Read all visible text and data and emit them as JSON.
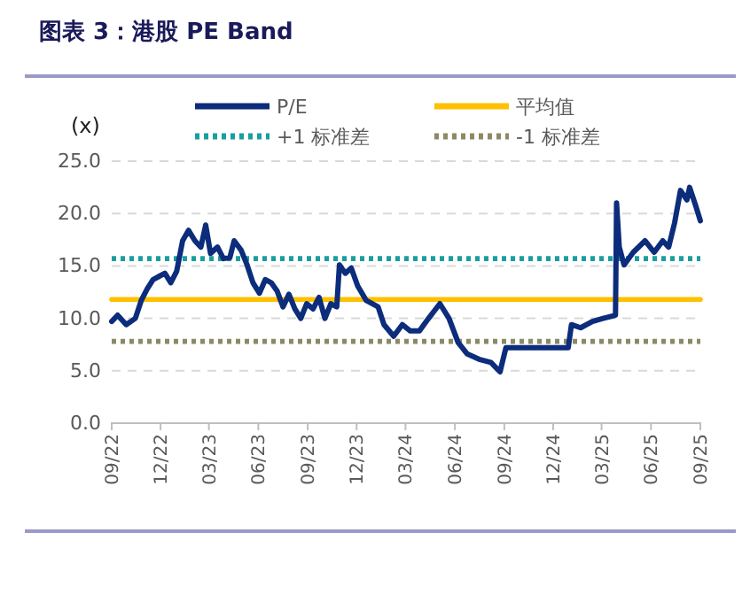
{
  "chart_data": {
    "type": "line",
    "title": "图表 3：港股 PE Band",
    "ylabel": "(x)",
    "xlim": [
      "2022-09-01",
      "2025-09-01"
    ],
    "xticks": [
      {
        "value": "2022-09-01",
        "label": "09/22"
      },
      {
        "value": "2022-12-01",
        "label": "12/22"
      },
      {
        "value": "2023-03-01",
        "label": "03/23"
      },
      {
        "value": "2023-06-01",
        "label": "06/23"
      },
      {
        "value": "2023-09-01",
        "label": "09/23"
      },
      {
        "value": "2023-12-01",
        "label": "12/23"
      },
      {
        "value": "2024-03-01",
        "label": "03/24"
      },
      {
        "value": "2024-06-01",
        "label": "06/24"
      },
      {
        "value": "2024-09-01",
        "label": "09/24"
      },
      {
        "value": "2024-12-01",
        "label": "12/24"
      },
      {
        "value": "2025-03-01",
        "label": "03/25"
      },
      {
        "value": "2025-06-01",
        "label": "06/25"
      },
      {
        "value": "2025-09-01",
        "label": "09/25"
      }
    ],
    "ylim": [
      0,
      25
    ],
    "yticks": [
      {
        "value": 0,
        "label": "0.0"
      },
      {
        "value": 5,
        "label": "5.0"
      },
      {
        "value": 10,
        "label": "10.0"
      },
      {
        "value": 15,
        "label": "15.0"
      },
      {
        "value": 20,
        "label": "20.0"
      },
      {
        "value": 25,
        "label": "25.0"
      }
    ],
    "grid": "y",
    "legend": "top",
    "marker": "none",
    "series": [
      {
        "name": "P/E",
        "color": "#0c2c7c",
        "line_style": "solid",
        "x": [
          "2022-09-01",
          "2022-09-12",
          "2022-09-28",
          "2022-10-15",
          "2022-10-26",
          "2022-11-06",
          "2022-11-17",
          "2022-11-28",
          "2022-12-09",
          "2022-12-20",
          "2022-12-31",
          "2023-01-11",
          "2023-01-22",
          "2023-02-03",
          "2023-02-14",
          "2023-02-23",
          "2023-03-04",
          "2023-03-17",
          "2023-03-28",
          "2023-04-09",
          "2023-04-17",
          "2023-04-30",
          "2023-05-11",
          "2023-05-22",
          "2023-06-03",
          "2023-06-14",
          "2023-06-25",
          "2023-07-06",
          "2023-07-17",
          "2023-07-28",
          "2023-08-08",
          "2023-08-19",
          "2023-08-30",
          "2023-09-11",
          "2023-09-22",
          "2023-10-03",
          "2023-10-14",
          "2023-10-25",
          "2023-10-30",
          "2023-11-10",
          "2023-11-21",
          "2023-12-03",
          "2023-12-19",
          "2024-01-10",
          "2024-01-21",
          "2024-02-08",
          "2024-02-24",
          "2024-03-10",
          "2024-03-27",
          "2024-04-13",
          "2024-05-04",
          "2024-05-21",
          "2024-06-07",
          "2024-06-24",
          "2024-07-16",
          "2024-08-07",
          "2024-08-24",
          "2024-09-04",
          "2024-10-24",
          "2024-12-29",
          "2025-01-04",
          "2025-01-21",
          "2025-02-12",
          "2025-03-04",
          "2025-03-27",
          "2025-03-29",
          "2025-04-03",
          "2025-04-12",
          "2025-04-29",
          "2025-05-21",
          "2025-06-07",
          "2025-06-23",
          "2025-07-04",
          "2025-07-15",
          "2025-07-26",
          "2025-08-07",
          "2025-08-12",
          "2025-08-23",
          "2025-09-01"
        ],
        "values": [
          9.7,
          10.3,
          9.4,
          10,
          11.7,
          12.8,
          13.7,
          14,
          14.3,
          13.4,
          14.5,
          17.4,
          18.4,
          17.4,
          16.8,
          18.9,
          16.2,
          16.8,
          15.7,
          15.8,
          17.4,
          16.5,
          15.1,
          13.4,
          12.4,
          13.7,
          13.4,
          12.6,
          11.1,
          12.3,
          10.9,
          10,
          11.4,
          10.9,
          12,
          10,
          11.4,
          11.1,
          15.1,
          14.3,
          14.8,
          13.1,
          11.7,
          11.1,
          9.4,
          8.3,
          9.4,
          8.8,
          8.8,
          10,
          11.4,
          10,
          7.7,
          6.6,
          6.1,
          5.8,
          4.9,
          7.2,
          7.2,
          7.2,
          9.4,
          9.1,
          9.7,
          10,
          10.3,
          21,
          16.8,
          15.1,
          16.3,
          17.4,
          16.3,
          17.4,
          16.8,
          19.1,
          22.2,
          21.3,
          22.5,
          20.8,
          19.3
        ]
      },
      {
        "name": "平均值",
        "color": "#ffc000",
        "line_style": "solid",
        "x": [
          "2022-09-01",
          "2025-09-01"
        ],
        "values": [
          11.8,
          11.8
        ]
      },
      {
        "name": "+1 标准差",
        "color": "#1a9e9e",
        "line_style": "dotted",
        "x": [
          "2022-09-01",
          "2025-09-01"
        ],
        "values": [
          15.7,
          15.7
        ]
      },
      {
        "name": "-1 标准差",
        "color": "#8c8a64",
        "line_style": "dotted",
        "x": [
          "2022-09-01",
          "2025-09-01"
        ],
        "values": [
          7.8,
          7.8
        ]
      }
    ]
  }
}
